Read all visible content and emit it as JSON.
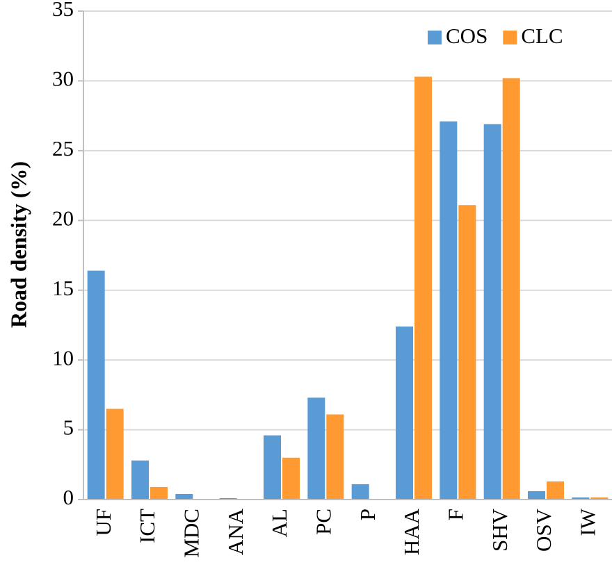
{
  "chart_data": {
    "type": "bar",
    "y_label": "Road  density (%)",
    "categories": [
      "UF",
      "ICT",
      "MDC",
      "ANA",
      "AL",
      "PC",
      "P",
      "HAA",
      "F",
      "SHV",
      "OSV",
      "IW"
    ],
    "series": [
      {
        "name": "COS",
        "color": "#5b9bd5",
        "values": [
          16.4,
          2.8,
          0.4,
          0.1,
          4.6,
          7.3,
          1.1,
          12.4,
          27.1,
          26.9,
          0.6,
          0.15
        ]
      },
      {
        "name": "CLC",
        "color": "#ff9a33",
        "values": [
          6.5,
          0.9,
          0,
          0,
          3.0,
          6.1,
          0,
          30.3,
          21.1,
          30.2,
          1.3,
          0.15
        ]
      }
    ],
    "ylim": [
      0,
      35
    ],
    "yticks": [
      0,
      5,
      10,
      15,
      20,
      25,
      30,
      35
    ],
    "grid": true,
    "legend": "top-right"
  }
}
